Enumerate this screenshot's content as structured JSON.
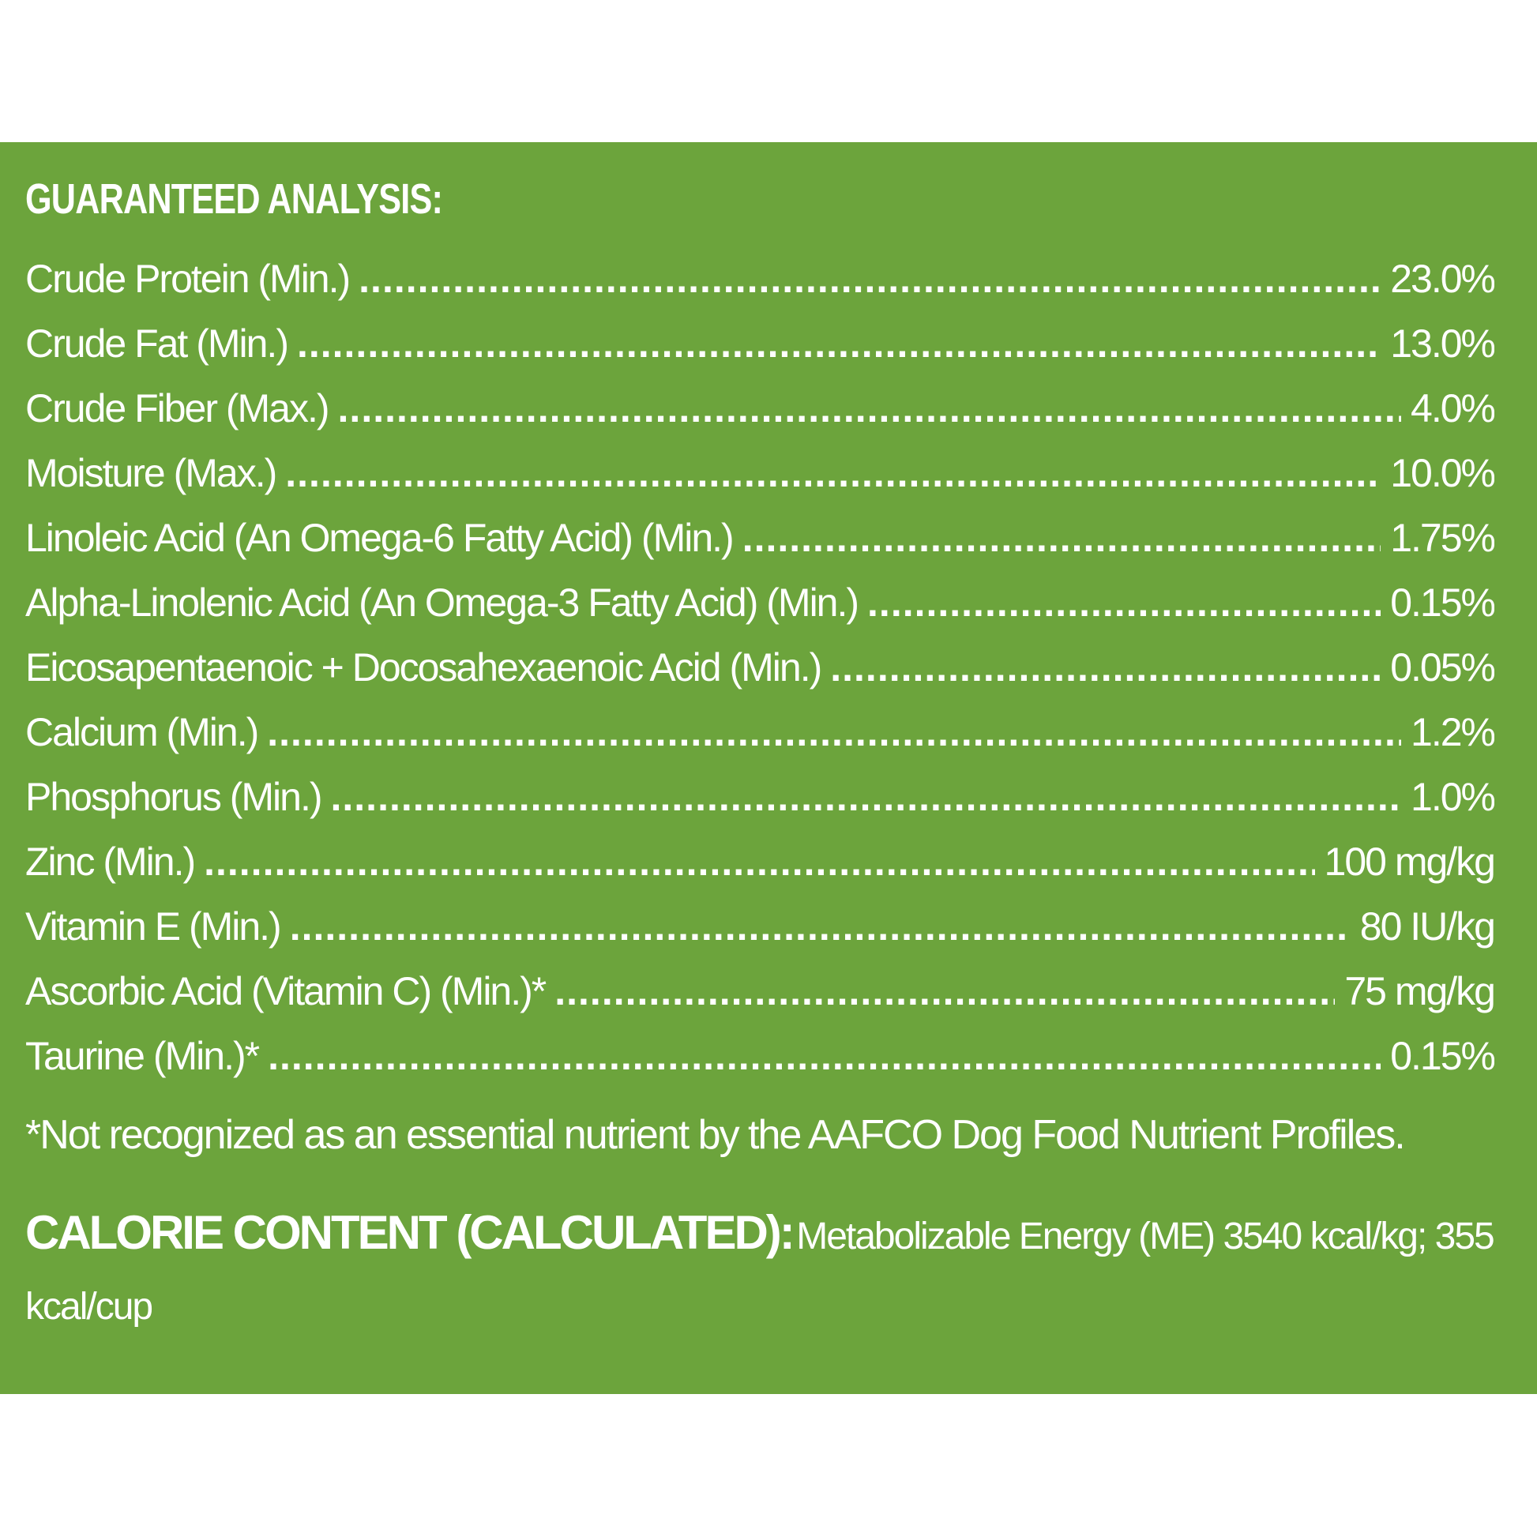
{
  "heading": "GUARANTEED ANALYSIS:",
  "rows": [
    {
      "label": "Crude Protein (Min.)",
      "value": "23.0%"
    },
    {
      "label": "Crude Fat (Min.)",
      "value": "13.0%"
    },
    {
      "label": "Crude Fiber (Max.)",
      "value": "4.0%"
    },
    {
      "label": "Moisture (Max.)",
      "value": "10.0%"
    },
    {
      "label": "Linoleic Acid (An Omega-6 Fatty Acid) (Min.)",
      "value": "1.75%"
    },
    {
      "label": "Alpha-Linolenic Acid (An Omega-3 Fatty Acid) (Min.)",
      "value": "0.15%"
    },
    {
      "label": "Eicosapentaenoic + Docosahexaenoic Acid (Min.)",
      "value": "0.05%"
    },
    {
      "label": "Calcium (Min.)",
      "value": "1.2%"
    },
    {
      "label": "Phosphorus (Min.)",
      "value": "1.0%"
    },
    {
      "label": "Zinc (Min.)",
      "value": "100 mg/kg"
    },
    {
      "label": "Vitamin E (Min.)",
      "value": "80 IU/kg"
    },
    {
      "label": "Ascorbic Acid (Vitamin C) (Min.)*",
      "value": "75 mg/kg"
    },
    {
      "label": "Taurine (Min.)*",
      "value": "0.15%"
    }
  ],
  "footnote": "*Not recognized as an essential nutrient by the AAFCO Dog Food Nutrient Profiles.",
  "calorie": {
    "title": "CALORIE CONTENT (CALCULATED):",
    "text": "Metabolizable Energy (ME) 3540 kcal/kg; 355 kcal/cup"
  },
  "colors": {
    "panel": "#6ca43c",
    "text": "#ffffff",
    "page": "#ffffff"
  }
}
